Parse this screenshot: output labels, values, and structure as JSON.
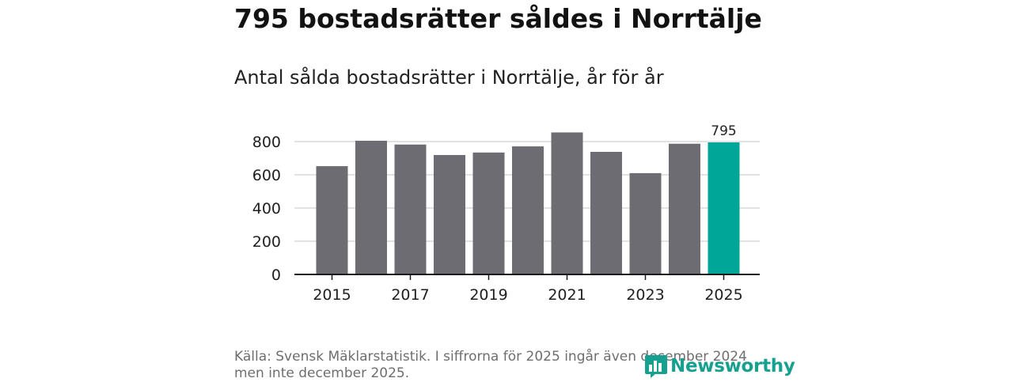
{
  "title": "795 bostadsrätter såldes i Norrtälje",
  "subtitle": "Antal sålda bostadsrätter i Norrtälje, år för år",
  "chart_data": {
    "type": "bar",
    "categories": [
      "2015",
      "2016",
      "2017",
      "2018",
      "2019",
      "2020",
      "2021",
      "2022",
      "2023",
      "2024",
      "2025"
    ],
    "values": [
      652,
      805,
      782,
      719,
      734,
      771,
      855,
      738,
      610,
      787,
      795
    ],
    "x_tick_labels": [
      "2015",
      "2017",
      "2019",
      "2021",
      "2023",
      "2025"
    ],
    "y_ticks": [
      0,
      200,
      400,
      600,
      800
    ],
    "ylim": [
      0,
      860
    ],
    "highlight_index": 10,
    "highlight_label": "795",
    "bar_color": "#6d6c72",
    "highlight_color": "#00a698",
    "grid": true
  },
  "source": "Källa: Svensk Mäklarstatistik. I siffrorna för 2025 ingår även december 2024 men inte december 2025.",
  "logo": {
    "name": "Newsworthy",
    "icon": "newsworthy-bar-chart-icon",
    "color": "#16a090"
  }
}
